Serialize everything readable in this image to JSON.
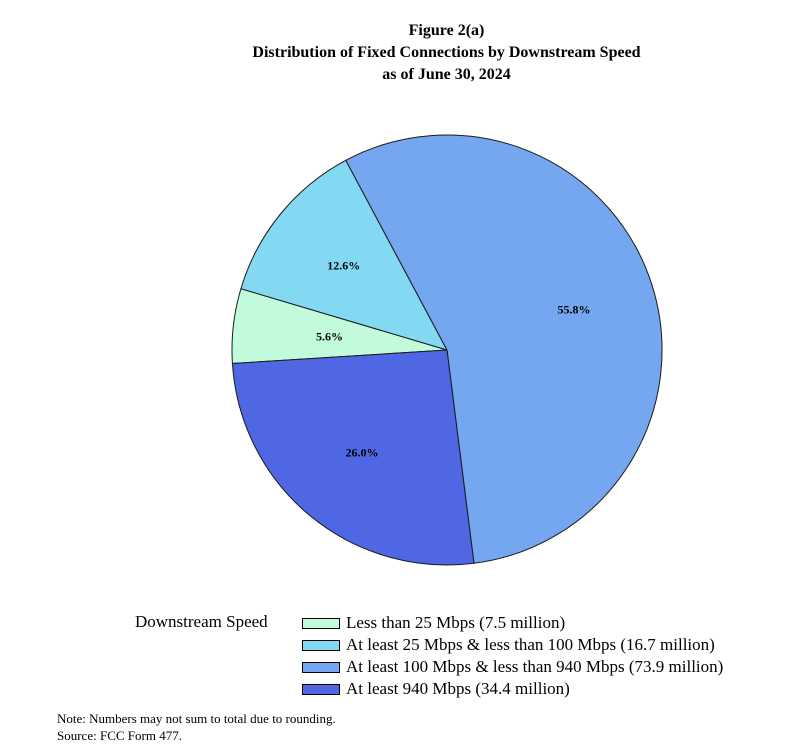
{
  "header": {
    "figure_label": "Figure 2(a)",
    "title": "Distribution of Fixed Connections by Downstream Speed",
    "subtitle": "as of June 30, 2024"
  },
  "chart_data": {
    "type": "pie",
    "title": "Distribution of Fixed Connections by Downstream Speed",
    "legend_title": "Downstream Speed",
    "legend_position": "bottom",
    "slices": [
      {
        "label": "Less than 25 Mbps (7.5 million)",
        "value": 5.6,
        "value_label": "5.6%",
        "color": "#c2fbdc"
      },
      {
        "label": "At least 25 Mbps & less than 100 Mbps (16.7 million)",
        "value": 12.6,
        "value_label": "12.6%",
        "color": "#82d9f1"
      },
      {
        "label": "At least 100 Mbps & less than 940 Mbps (73.9 million)",
        "value": 55.8,
        "value_label": "55.8%",
        "color": "#74a7ef"
      },
      {
        "label": "At least 940 Mbps (34.4 million)",
        "value": 26.0,
        "value_label": "26.0%",
        "color": "#4f67e3"
      }
    ]
  },
  "footer": {
    "note": "Note: Numbers may not sum to total due to rounding.",
    "source": "Source: FCC Form 477."
  }
}
